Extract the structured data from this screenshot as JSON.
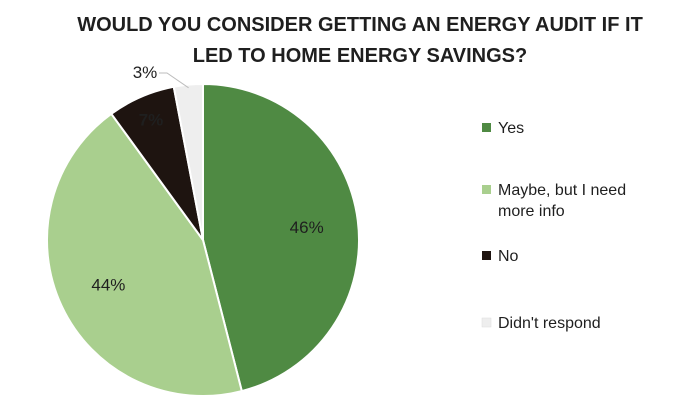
{
  "chart_data": {
    "type": "pie",
    "title_lines": [
      "WOULD YOU CONSIDER GETTING AN ENERGY AUDIT IF IT",
      "LED TO HOME ENERGY SAVINGS?"
    ],
    "start_angle_deg": 0,
    "direction": "clockwise",
    "slices": [
      {
        "label": "Yes",
        "value": 46,
        "display": "46%",
        "color": "#4f8a43"
      },
      {
        "label": "Maybe, but I need more info",
        "value": 44,
        "display": "44%",
        "color": "#a9cf8e"
      },
      {
        "label": "No",
        "value": 7,
        "display": "7%",
        "color": "#1e1410"
      },
      {
        "label": "Didn't respond",
        "value": 3,
        "display": "3%",
        "color": "#eeeeee"
      }
    ],
    "legend": {
      "position": "right",
      "entries": [
        {
          "lines": [
            "Yes"
          ],
          "color": "#4f8a43"
        },
        {
          "lines": [
            "Maybe, but I need",
            "more info"
          ],
          "color": "#a9cf8e"
        },
        {
          "lines": [
            "No"
          ],
          "color": "#1e1410"
        },
        {
          "lines": [
            "Didn't respond"
          ],
          "color": "#eeeeee"
        }
      ]
    }
  }
}
